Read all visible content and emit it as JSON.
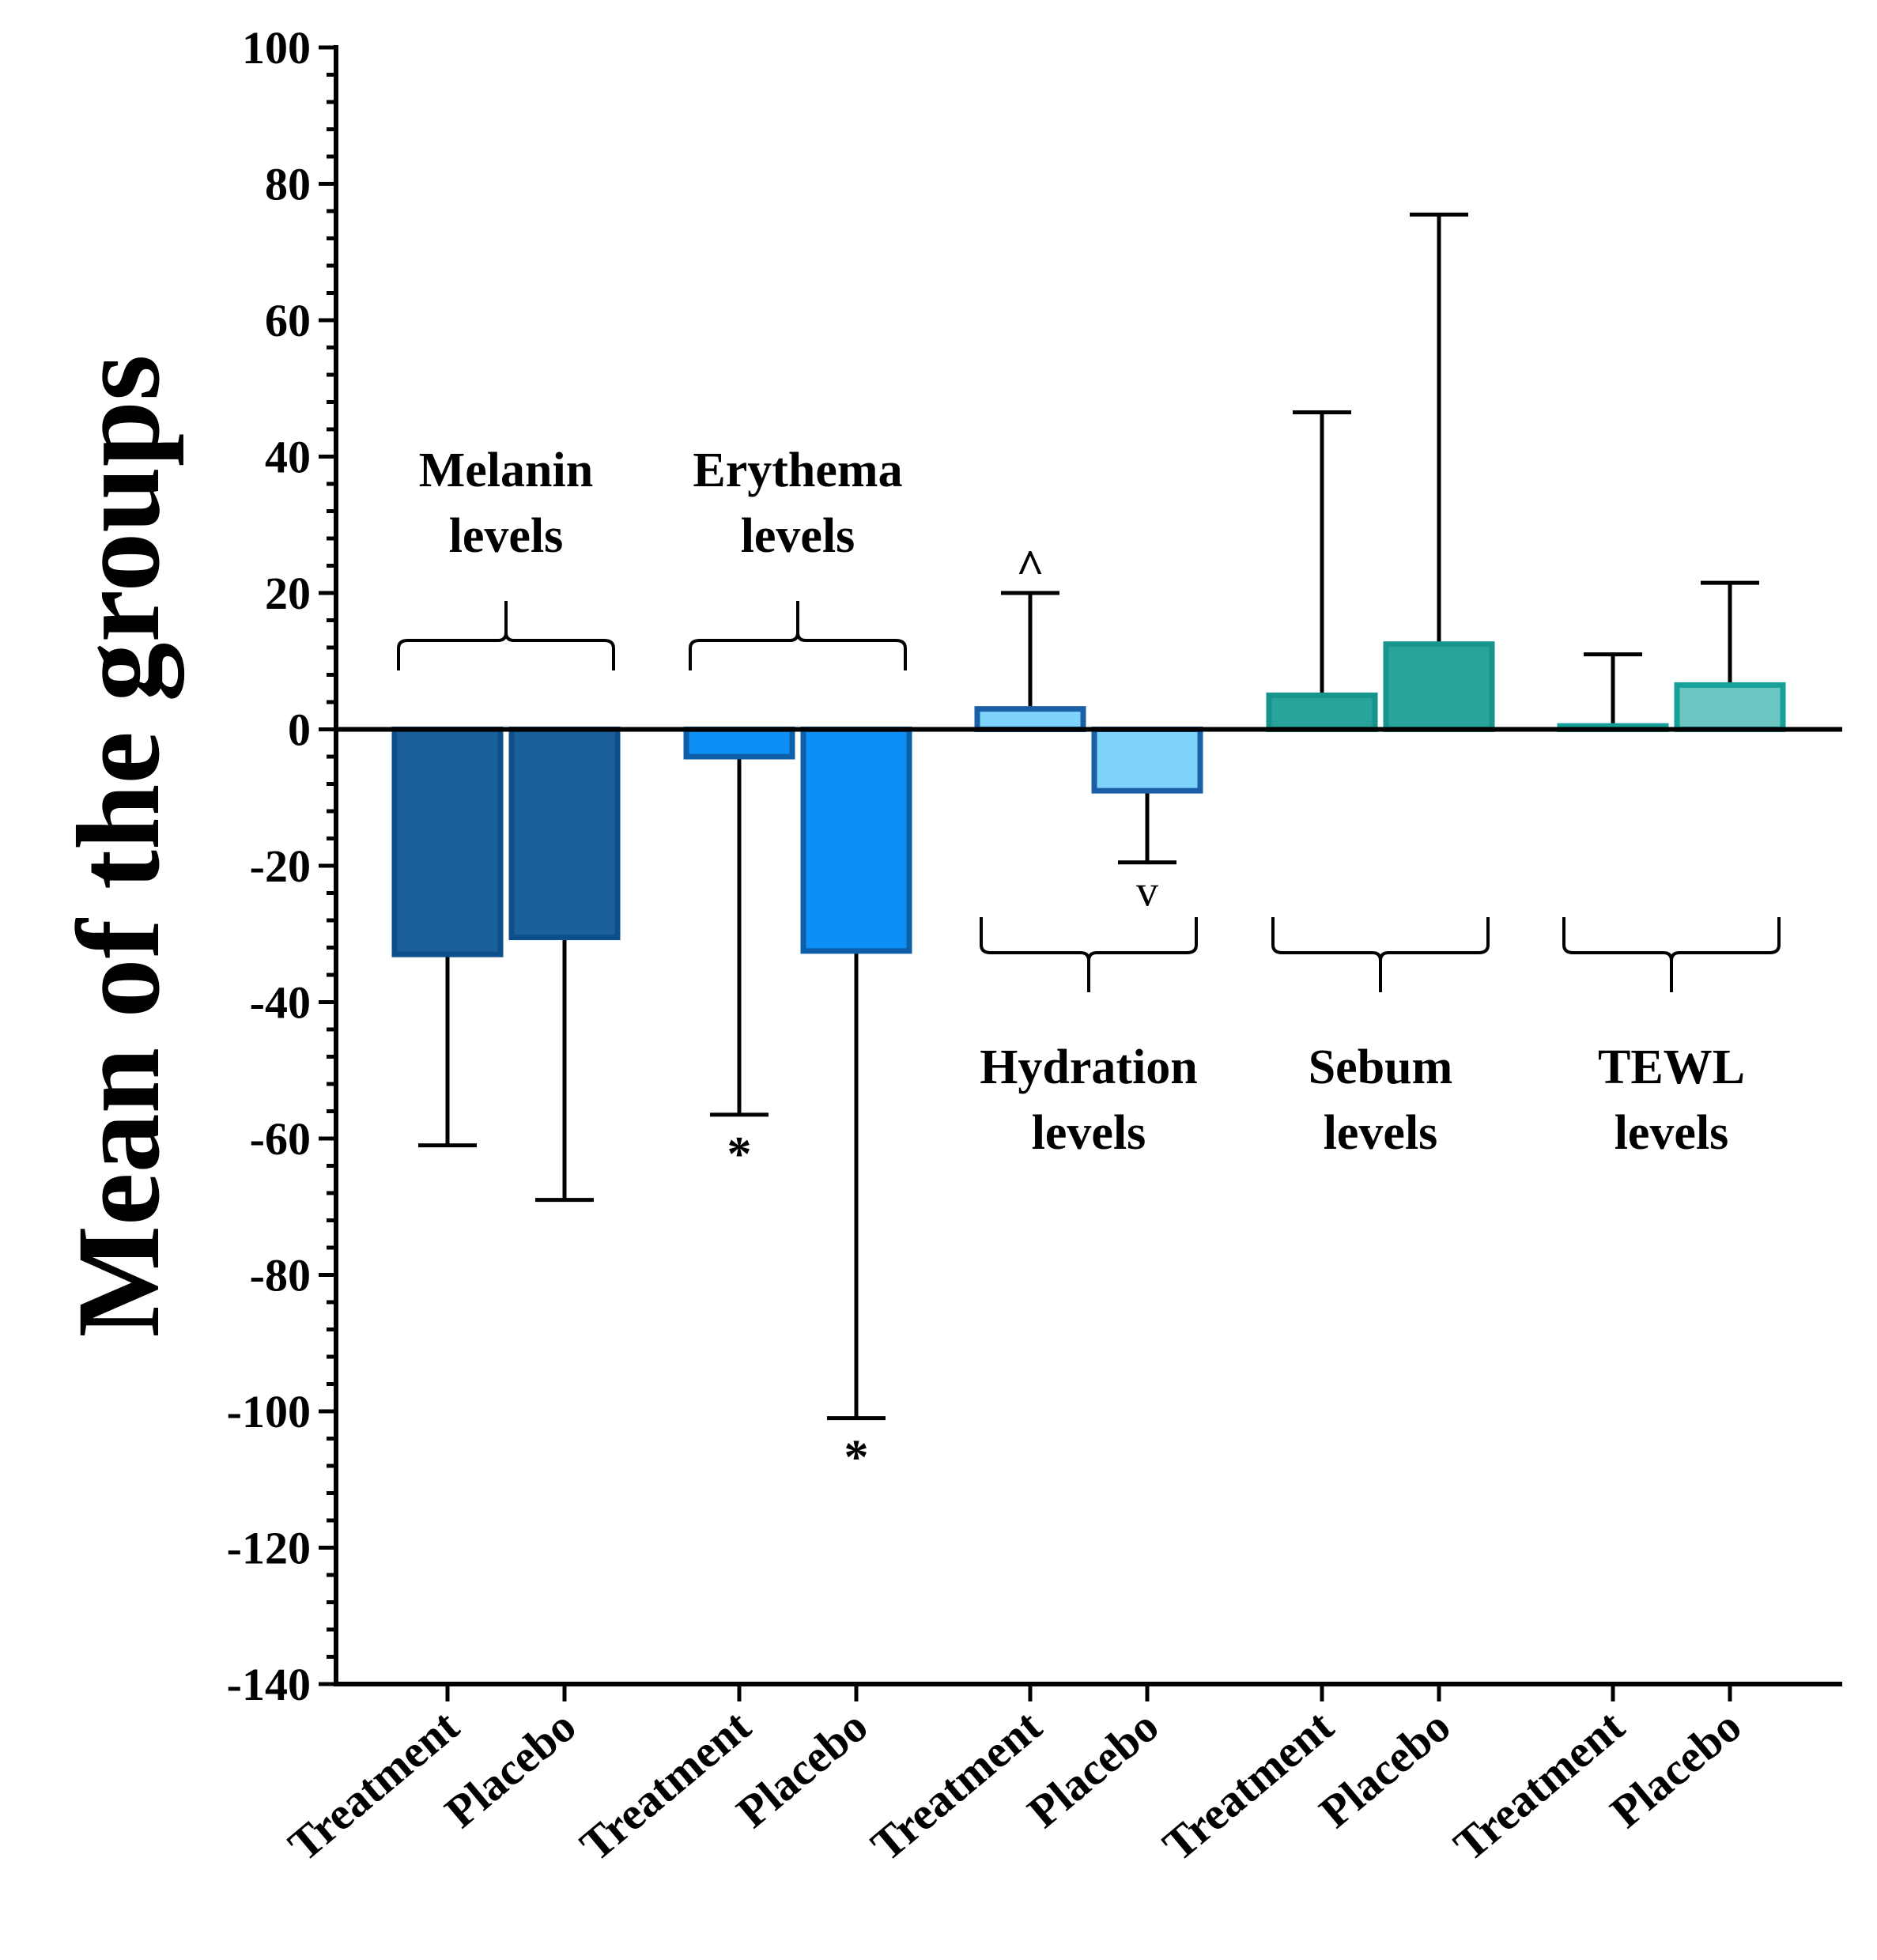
{
  "chart_data": {
    "type": "bar",
    "ylabel": "Mean of the groups",
    "ylim": [
      -140,
      100
    ],
    "yticks": [
      "100",
      "80",
      "60",
      "40",
      "20",
      "0",
      "-20",
      "-40",
      "-60",
      "-80",
      "-100",
      "-120",
      "-140"
    ],
    "categories": [
      "Treatment",
      "Placebo",
      "Treatment",
      "Placebo",
      "Treatment",
      "Placebo",
      "Treatment",
      "Placebo",
      "Treatment",
      "Placebo"
    ],
    "groups": [
      {
        "label_lines": [
          "Melanin",
          "levels"
        ],
        "bars": [
          {
            "category": "Treatment",
            "value": -33,
            "error_end": -61,
            "color": "#1a6099",
            "edge": "#0d4f8b",
            "marker": ""
          },
          {
            "category": "Placebo",
            "value": -30.5,
            "error_end": -69,
            "color": "#1a6099",
            "edge": "#0d4f8b",
            "marker": ""
          }
        ]
      },
      {
        "label_lines": [
          "Erythema",
          "levels"
        ],
        "bars": [
          {
            "category": "Treatment",
            "value": -4,
            "error_end": -56.5,
            "color": "#0d8ff5",
            "edge": "#0d5fa8",
            "marker": "*"
          },
          {
            "category": "Placebo",
            "value": -32.5,
            "error_end": -101,
            "color": "#0d8ff5",
            "edge": "#0d5fa8",
            "marker": "*"
          }
        ]
      },
      {
        "label_lines": [
          "Hydration",
          "levels"
        ],
        "bars": [
          {
            "category": "Treatment",
            "value": 3,
            "error_end": 20,
            "color": "#7dd3fa",
            "edge": "#1b5fa6",
            "marker": "^"
          },
          {
            "category": "Placebo",
            "value": -9,
            "error_end": -19.5,
            "color": "#7dd3fa",
            "edge": "#1b5fa6",
            "marker": "v"
          }
        ]
      },
      {
        "label_lines": [
          "Sebum",
          "levels"
        ],
        "bars": [
          {
            "category": "Treatment",
            "value": 5,
            "error_end": 46.5,
            "color": "#2aa39a",
            "edge": "#17958c",
            "marker": ""
          },
          {
            "category": "Placebo",
            "value": 12.5,
            "error_end": 75.5,
            "color": "#2aa39a",
            "edge": "#17958c",
            "marker": ""
          }
        ]
      },
      {
        "label_lines": [
          "TEWL",
          "levels"
        ],
        "bars": [
          {
            "category": "Treatment",
            "value": 0.5,
            "error_end": 11,
            "color": "#6cc5c0",
            "edge": "#17a099",
            "marker": ""
          },
          {
            "category": "Placebo",
            "value": 6.5,
            "error_end": 21.5,
            "color": "#6cc5c0",
            "edge": "#17a099",
            "marker": ""
          }
        ]
      }
    ],
    "grid": false,
    "legend": "none"
  }
}
